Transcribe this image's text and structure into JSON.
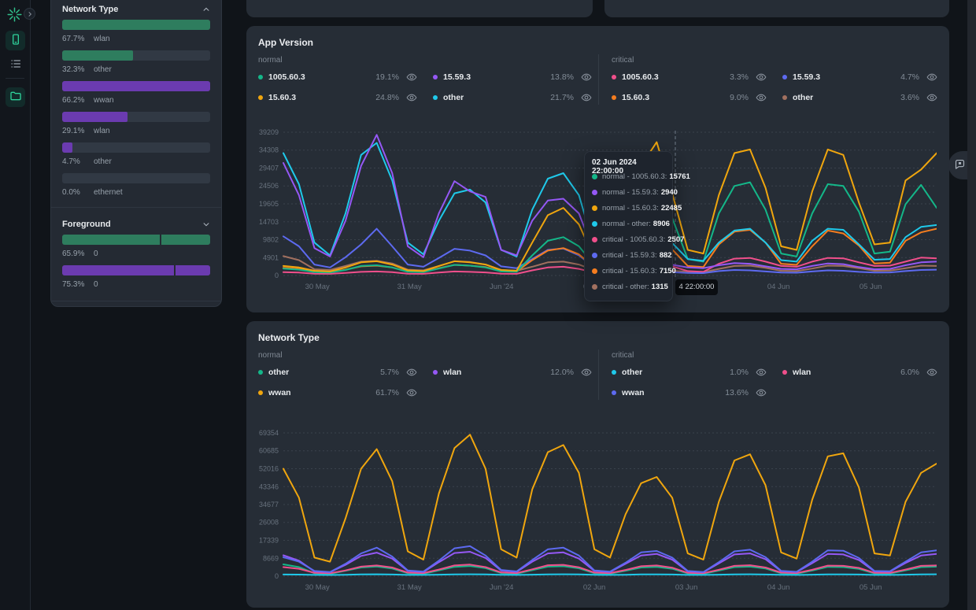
{
  "colors": {
    "green": "#14b789",
    "purple": "#9558f5",
    "yellow": "#f0a60e",
    "cyan": "#1fc9ea",
    "pink": "#f04f8b",
    "indigo": "#5d6af0",
    "orange": "#f57d1f",
    "brown": "#a1705f",
    "bar_green": "#2e7d5e",
    "bar_purple": "#6b3bb0",
    "bar_track": "#313944"
  },
  "rail": {
    "logo_icon": "spark-logo-icon",
    "collapse_icon": "chevron-right-icon",
    "buttons": [
      {
        "icon": "smartphone-icon",
        "active": true
      },
      {
        "icon": "list-icon",
        "active": false
      },
      {
        "icon": "folder-icon",
        "active": true
      }
    ]
  },
  "panel": {
    "sections": [
      {
        "title": "Network Type",
        "chevron": "up",
        "bars": [
          {
            "pct": "67.7%",
            "label": "wlan",
            "color": "bar_green",
            "fill_pct": 100
          },
          {
            "pct": "32.3%",
            "label": "other",
            "color": "bar_green",
            "fill_pct": 47.7
          },
          {
            "pct": "66.2%",
            "label": "wwan",
            "color": "bar_purple",
            "fill_pct": 100
          },
          {
            "pct": "29.1%",
            "label": "wlan",
            "color": "bar_purple",
            "fill_pct": 44
          },
          {
            "pct": "4.7%",
            "label": "other",
            "color": "bar_purple",
            "fill_pct": 7.1
          },
          {
            "pct": "0.0%",
            "label": "ethernet",
            "color": "bar_purple",
            "fill_pct": 0
          }
        ]
      },
      {
        "title": "Foreground",
        "chevron": "down",
        "bars": [
          {
            "pct": "65.9%",
            "label": "0",
            "color": "bar_green",
            "fill_pct": 100,
            "split_pct": 65.9
          },
          {
            "pct": "75.3%",
            "label": "0",
            "color": "bar_purple",
            "fill_pct": 100,
            "split_pct": 75.3
          }
        ]
      }
    ]
  },
  "main": {
    "app_version": {
      "title": "App Version",
      "hover_axis_label": "4 22:00:00",
      "groups": [
        {
          "label": "normal",
          "items": [
            {
              "name": "1005.60.3",
              "pct": "19.1%",
              "color": "green"
            },
            {
              "name": "15.59.3",
              "pct": "13.8%",
              "color": "purple"
            },
            {
              "name": "15.60.3",
              "pct": "24.8%",
              "color": "yellow"
            },
            {
              "name": "other",
              "pct": "21.7%",
              "color": "cyan"
            }
          ]
        },
        {
          "label": "critical",
          "items": [
            {
              "name": "1005.60.3",
              "pct": "3.3%",
              "color": "pink"
            },
            {
              "name": "15.59.3",
              "pct": "4.7%",
              "color": "indigo"
            },
            {
              "name": "15.60.3",
              "pct": "9.0%",
              "color": "orange"
            },
            {
              "name": "other",
              "pct": "3.6%",
              "color": "brown"
            }
          ]
        }
      ]
    },
    "network_type": {
      "title": "Network Type",
      "groups": [
        {
          "label": "normal",
          "items": [
            {
              "name": "other",
              "pct": "5.7%",
              "color": "green"
            },
            {
              "name": "wlan",
              "pct": "12.0%",
              "color": "purple"
            },
            {
              "name": "wwan",
              "pct": "61.7%",
              "color": "yellow"
            }
          ]
        },
        {
          "label": "critical",
          "items": [
            {
              "name": "other",
              "pct": "1.0%",
              "color": "cyan"
            },
            {
              "name": "wlan",
              "pct": "6.0%",
              "color": "pink"
            },
            {
              "name": "wwan",
              "pct": "13.6%",
              "color": "indigo"
            }
          ]
        }
      ]
    }
  },
  "tooltip": {
    "title": "02 Jun 2024 22:00:00",
    "rows": [
      {
        "label": "normal - 1005.60.3:",
        "value": "15761",
        "color": "green"
      },
      {
        "label": "normal - 15.59.3:",
        "value": "2940",
        "color": "purple"
      },
      {
        "label": "normal - 15.60.3:",
        "value": "22485",
        "color": "yellow"
      },
      {
        "label": "normal - other:",
        "value": "8906",
        "color": "cyan"
      },
      {
        "label": "critical - 1005.60.3:",
        "value": "2507",
        "color": "pink"
      },
      {
        "label": "critical - 15.59.3:",
        "value": "882",
        "color": "indigo"
      },
      {
        "label": "critical - 15.60.3:",
        "value": "7150",
        "color": "orange"
      },
      {
        "label": "critical - other:",
        "value": "1315",
        "color": "brown"
      }
    ]
  },
  "feedback_icon": "chat-bubble-icon",
  "chart_data": [
    {
      "type": "line",
      "title": "App Version",
      "grid": "dashed-horizontal",
      "legend_position": "top",
      "x_axis": {
        "labels": [
          "30 May",
          "31 May",
          "Jun '24",
          "02 Jun",
          "03 Jun",
          "04 Jun",
          "05 Jun"
        ],
        "fracs": [
          0.052,
          0.193,
          0.334,
          0.476,
          0.617,
          0.758,
          0.899
        ]
      },
      "y_axis": {
        "max": 39209,
        "ticks": [
          0,
          4901,
          9802,
          14703,
          19605,
          24506,
          29407,
          34308,
          39209
        ]
      },
      "hover": {
        "frac": 0.6,
        "datetime": "02 Jun 2024 22:00:00"
      },
      "draw_order": [
        7,
        4,
        5,
        6,
        0,
        3,
        1,
        2
      ],
      "series": [
        {
          "name": "normal-1005.60.3",
          "color": "green",
          "values": [
            1900,
            1600,
            900,
            800,
            1500,
            2600,
            2800,
            2200,
            1000,
            900,
            1900,
            2900,
            2700,
            2200,
            1100,
            1000,
            5500,
            9500,
            10500,
            8000,
            2800,
            2200,
            9000,
            14000,
            16500,
            15761,
            4500,
            3800,
            17000,
            24500,
            25500,
            18000,
            6000,
            5200,
            17000,
            25000,
            24500,
            17500,
            6000,
            6500,
            19500,
            24800,
            18500
          ]
        },
        {
          "name": "normal-15.59.3",
          "color": "purple",
          "values": [
            30800,
            22000,
            7500,
            5200,
            15000,
            30000,
            38500,
            28000,
            8000,
            5000,
            17000,
            25800,
            23000,
            21500,
            7000,
            5500,
            15000,
            20500,
            21000,
            17000,
            6000,
            4200,
            7000,
            9500,
            8000,
            2940,
            2200,
            2000,
            2800,
            3400,
            3200,
            2500,
            1800,
            1700,
            2600,
            3300,
            3100,
            2300,
            1700,
            1800,
            2800,
            3600,
            3800
          ]
        },
        {
          "name": "normal-15.60.3",
          "color": "yellow",
          "values": [
            2600,
            2200,
            1300,
            1100,
            2200,
            3600,
            3900,
            3000,
            1400,
            1200,
            2600,
            3900,
            3600,
            3000,
            1500,
            1300,
            9000,
            16500,
            18500,
            14000,
            4500,
            3500,
            20000,
            30000,
            36500,
            22485,
            7000,
            6000,
            22000,
            33500,
            34500,
            24000,
            8000,
            7000,
            23000,
            34500,
            33000,
            20000,
            8500,
            9000,
            26000,
            29000,
            33500
          ]
        },
        {
          "name": "normal-other",
          "color": "cyan",
          "values": [
            33500,
            25000,
            9000,
            5500,
            17000,
            33000,
            36300,
            26000,
            9000,
            5800,
            15000,
            22500,
            23500,
            20000,
            7000,
            5200,
            18000,
            26500,
            28000,
            22000,
            7500,
            5000,
            14000,
            19000,
            16000,
            8906,
            4500,
            4000,
            9000,
            12300,
            12800,
            9000,
            4200,
            3800,
            9500,
            12800,
            12500,
            8500,
            4300,
            4500,
            10500,
            13300,
            13800
          ]
        },
        {
          "name": "critical-1005.60.3",
          "color": "pink",
          "values": [
            900,
            800,
            500,
            450,
            700,
            1000,
            1100,
            900,
            500,
            450,
            800,
            1100,
            1000,
            850,
            500,
            450,
            1400,
            2200,
            2400,
            1800,
            800,
            700,
            1800,
            2600,
            2800,
            2507,
            1200,
            1000,
            3200,
            4600,
            4800,
            3800,
            2600,
            2400,
            3800,
            4800,
            4700,
            3600,
            2600,
            2700,
            3800,
            4900,
            4700
          ]
        },
        {
          "name": "critical-15.59.3",
          "color": "indigo",
          "values": [
            10700,
            8000,
            3000,
            2200,
            5000,
            8500,
            12800,
            8000,
            3000,
            2400,
            4800,
            7300,
            6800,
            5500,
            2500,
            2000,
            4500,
            7000,
            7400,
            5500,
            2200,
            1800,
            3500,
            4800,
            4200,
            882,
            700,
            650,
            1200,
            1500,
            1400,
            1100,
            800,
            750,
            1100,
            1400,
            1300,
            1000,
            800,
            850,
            1200,
            1500,
            1600
          ]
        },
        {
          "name": "critical-15.60.3",
          "color": "orange",
          "values": [
            2100,
            1800,
            1000,
            900,
            1600,
            2500,
            2700,
            2200,
            1100,
            1000,
            2000,
            2900,
            2700,
            2300,
            1200,
            1100,
            4200,
            6800,
            7500,
            5800,
            2200,
            1900,
            5500,
            8200,
            9000,
            7150,
            2600,
            2300,
            8500,
            12000,
            12500,
            9000,
            3200,
            2900,
            8000,
            12300,
            11500,
            8200,
            3300,
            3500,
            9500,
            11800,
            12800
          ]
        },
        {
          "name": "critical-other",
          "color": "brown",
          "values": [
            5300,
            4200,
            1700,
            1500,
            2600,
            3800,
            4000,
            3300,
            1600,
            1400,
            2600,
            3900,
            3700,
            3000,
            1500,
            1300,
            2400,
            3600,
            3800,
            3000,
            1400,
            1200,
            2200,
            3100,
            2800,
            1315,
            1000,
            900,
            1800,
            2600,
            2700,
            2100,
            1300,
            1200,
            1900,
            2700,
            2600,
            2000,
            1300,
            1350,
            2000,
            2700,
            2600
          ]
        }
      ]
    },
    {
      "type": "line",
      "title": "Network Type",
      "grid": "dashed-horizontal",
      "legend_position": "top",
      "x_axis": {
        "labels": [
          "30 May",
          "31 May",
          "Jun '24",
          "02 Jun",
          "03 Jun",
          "04 Jun",
          "05 Jun"
        ],
        "fracs": [
          0.052,
          0.193,
          0.334,
          0.476,
          0.617,
          0.758,
          0.899
        ]
      },
      "y_axis": {
        "max": 69354,
        "ticks": [
          0,
          8669,
          17339,
          26008,
          34677,
          43346,
          52016,
          60685,
          69354
        ]
      },
      "draw_order": [
        0,
        4,
        1,
        5,
        3,
        2
      ],
      "series": [
        {
          "name": "normal-other",
          "color": "green",
          "values": [
            5700,
            4400,
            1400,
            1100,
            2600,
            4200,
            4700,
            3700,
            1400,
            1100,
            2800,
            4500,
            4900,
            3900,
            1500,
            1200,
            2900,
            4600,
            4800,
            3800,
            1400,
            1200,
            2600,
            4200,
            4500,
            3600,
            1300,
            1100,
            2700,
            4400,
            4600,
            3700,
            1400,
            1200,
            2700,
            4500,
            4400,
            3500,
            1300,
            1250,
            2800,
            4400,
            4600
          ]
        },
        {
          "name": "normal-wlan",
          "color": "purple",
          "values": [
            10100,
            7500,
            2300,
            1900,
            5500,
            9800,
            11400,
            8500,
            2500,
            2000,
            6800,
            11200,
            11800,
            8800,
            2700,
            2100,
            7000,
            11000,
            11500,
            8500,
            2500,
            2000,
            6000,
            10000,
            10800,
            8000,
            2300,
            1900,
            6200,
            10500,
            11000,
            8200,
            2400,
            2000,
            6300,
            10800,
            10500,
            7800,
            2300,
            2200,
            6400,
            10000,
            10800
          ]
        },
        {
          "name": "normal-wwan",
          "color": "yellow",
          "values": [
            52000,
            38000,
            9000,
            7000,
            28000,
            52000,
            61500,
            46000,
            12000,
            8000,
            40000,
            62000,
            68500,
            52000,
            13000,
            9000,
            42000,
            60000,
            63500,
            50000,
            13000,
            9000,
            30000,
            45000,
            48000,
            38000,
            11000,
            8000,
            36000,
            56000,
            59000,
            44000,
            11500,
            8500,
            37000,
            58000,
            59500,
            43000,
            11000,
            10000,
            36000,
            50000,
            54500
          ]
        },
        {
          "name": "critical-other",
          "color": "cyan",
          "values": [
            800,
            750,
            600,
            580,
            700,
            850,
            900,
            800,
            620,
            600,
            720,
            880,
            920,
            820,
            630,
            610,
            730,
            890,
            930,
            830,
            640,
            620,
            700,
            850,
            880,
            800,
            620,
            600,
            710,
            870,
            900,
            810,
            630,
            610,
            720,
            880,
            870,
            790,
            620,
            615,
            730,
            870,
            900
          ]
        },
        {
          "name": "critical-wlan",
          "color": "pink",
          "values": [
            4400,
            3600,
            1600,
            1400,
            2800,
            4600,
            5200,
            4200,
            1700,
            1500,
            3200,
            5200,
            5600,
            4400,
            1800,
            1500,
            3300,
            5300,
            5500,
            4300,
            1700,
            1500,
            3000,
            4800,
            5200,
            4100,
            1600,
            1400,
            3100,
            5000,
            5300,
            4200,
            1700,
            1500,
            3100,
            5100,
            5000,
            4000,
            1600,
            1550,
            3200,
            5000,
            5200
          ]
        },
        {
          "name": "critical-wwan",
          "color": "indigo",
          "values": [
            9200,
            7000,
            2500,
            2000,
            6000,
            11000,
            13800,
            9500,
            2800,
            2200,
            7500,
            13500,
            14500,
            10000,
            3000,
            2300,
            7800,
            13000,
            13800,
            10000,
            2800,
            2200,
            6500,
            11500,
            12200,
            9000,
            2500,
            2000,
            6800,
            12000,
            12800,
            9200,
            2600,
            2100,
            7000,
            12500,
            12300,
            8800,
            2500,
            2400,
            7000,
            11500,
            12500
          ]
        }
      ]
    }
  ]
}
